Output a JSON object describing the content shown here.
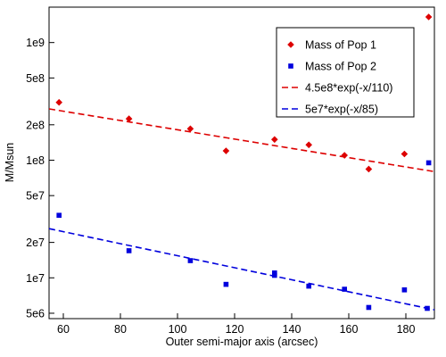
{
  "chart_data": {
    "type": "scatter",
    "title": "",
    "xlabel": "Outer semi-major axis (arcsec)",
    "ylabel": "M/Msun",
    "xlim": [
      55,
      190
    ],
    "ylim": [
      4500000,
      2000000000
    ],
    "yscale": "log",
    "grid": false,
    "legend_position": "top-right",
    "x_ticks": [
      60,
      80,
      100,
      120,
      140,
      160,
      180
    ],
    "x_tick_labels": [
      "60",
      "80",
      "100",
      "120",
      "140",
      "160",
      "180"
    ],
    "y_ticks": [
      5000000,
      10000000,
      20000000,
      50000000,
      100000000,
      200000000,
      500000000,
      1000000000
    ],
    "y_tick_labels": [
      "5e6",
      "1e7",
      "2e7",
      "5e7",
      "1e8",
      "2e8",
      "5e8",
      "1e9"
    ],
    "series": [
      {
        "name": "Mass of Pop 1",
        "kind": "points",
        "marker": "diamond",
        "color": "#dd0000",
        "x": [
          58.5,
          83,
          104.5,
          117,
          134,
          146,
          158.5,
          167,
          179.5,
          188
        ],
        "y": [
          310000000,
          225000000,
          185000000,
          120000000,
          150000000,
          135000000,
          110000000,
          84000000,
          113000000,
          1650000000
        ]
      },
      {
        "name": "Mass of Pop 2",
        "kind": "points",
        "marker": "square",
        "color": "#0000dd",
        "x": [
          58.5,
          83,
          104.5,
          117,
          134,
          134,
          146,
          158.5,
          167,
          179.5,
          187.5,
          188
        ],
        "y": [
          34000000,
          17000000,
          14000000,
          8800000,
          10500000,
          11000000,
          8500000,
          8000000,
          5600000,
          7900000,
          5500000,
          95000000
        ]
      },
      {
        "name": "4.5e8*exp(-x/110)",
        "kind": "line",
        "dash": "dashed",
        "color": "#dd0000",
        "amplitude": 450000000,
        "scale": 110
      },
      {
        "name": "5e7*exp(-x/85)",
        "kind": "line",
        "dash": "dashed",
        "color": "#0000dd",
        "amplitude": 50000000,
        "scale": 85
      }
    ]
  }
}
